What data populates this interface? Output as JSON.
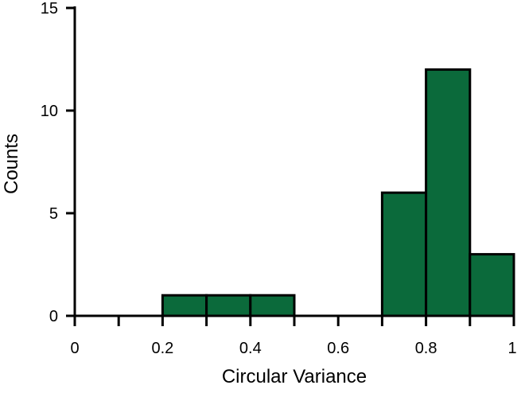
{
  "chart_data": {
    "type": "bar",
    "title": "",
    "xlabel": "Circular Variance",
    "ylabel": "Counts",
    "bin_edges": [
      0,
      0.1,
      0.2,
      0.3,
      0.4,
      0.5,
      0.6,
      0.7,
      0.8,
      0.9,
      1.0
    ],
    "bins": [
      {
        "x0": 0.0,
        "x1": 0.1,
        "count": 0
      },
      {
        "x0": 0.1,
        "x1": 0.2,
        "count": 0
      },
      {
        "x0": 0.2,
        "x1": 0.3,
        "count": 1
      },
      {
        "x0": 0.3,
        "x1": 0.4,
        "count": 1
      },
      {
        "x0": 0.4,
        "x1": 0.5,
        "count": 1
      },
      {
        "x0": 0.5,
        "x1": 0.6,
        "count": 0
      },
      {
        "x0": 0.6,
        "x1": 0.7,
        "count": 0
      },
      {
        "x0": 0.7,
        "x1": 0.8,
        "count": 6
      },
      {
        "x0": 0.8,
        "x1": 0.9,
        "count": 12
      },
      {
        "x0": 0.9,
        "x1": 1.0,
        "count": 3
      }
    ],
    "xlim": [
      0,
      1
    ],
    "ylim": [
      0,
      15
    ],
    "x_ticks": [
      0,
      0.1,
      0.2,
      0.3,
      0.4,
      0.5,
      0.6,
      0.7,
      0.8,
      0.9,
      1.0
    ],
    "x_tick_labels": [
      {
        "value": 0,
        "label": "0"
      },
      {
        "value": 0.2,
        "label": "0.2"
      },
      {
        "value": 0.4,
        "label": "0.4"
      },
      {
        "value": 0.6,
        "label": "0.6"
      },
      {
        "value": 0.8,
        "label": "0.8"
      },
      {
        "value": 1.0,
        "label": "1"
      }
    ],
    "y_ticks": [
      {
        "value": 0,
        "label": "0"
      },
      {
        "value": 5,
        "label": "5"
      },
      {
        "value": 10,
        "label": "10"
      },
      {
        "value": 15,
        "label": "15"
      }
    ],
    "bar_color": "#0b6a3b",
    "edge_color": "#000000",
    "grid": false,
    "legend": "none"
  }
}
